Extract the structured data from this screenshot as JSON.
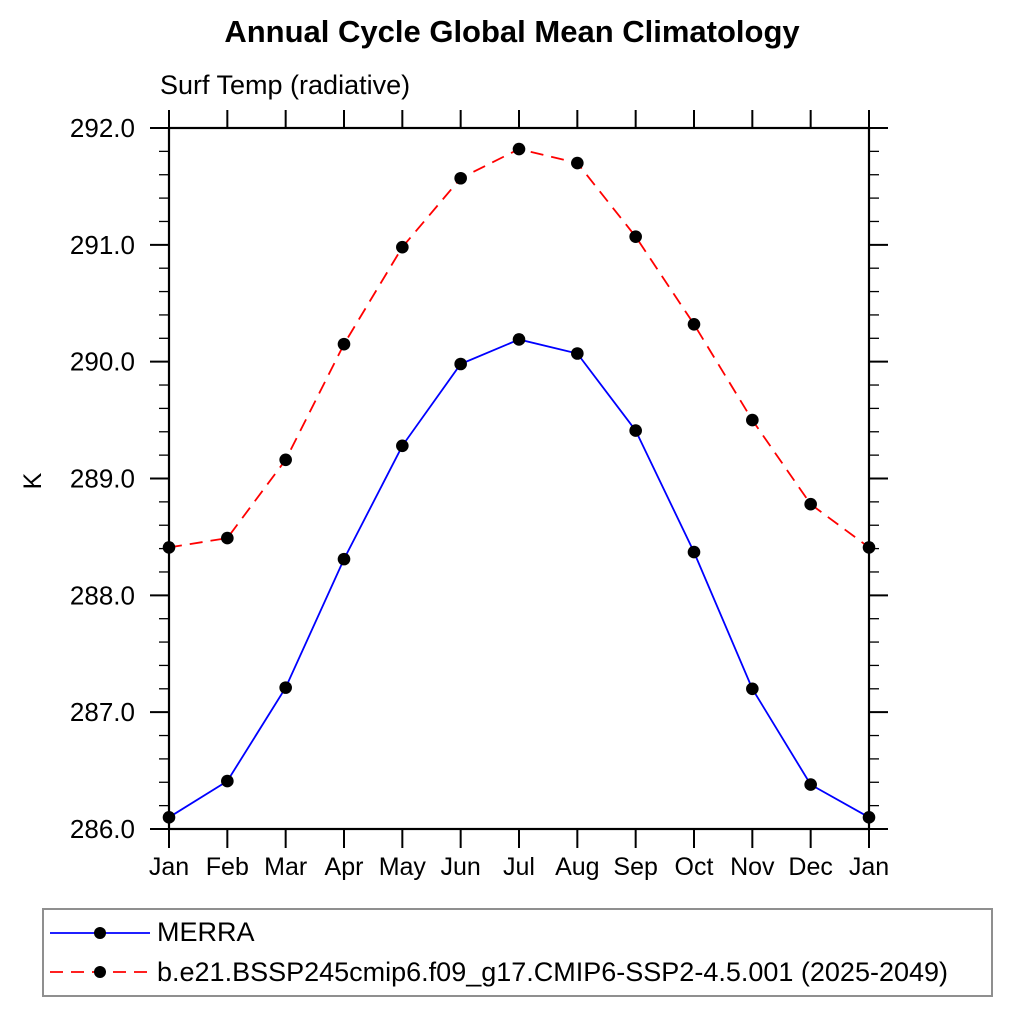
{
  "chart_data": {
    "type": "line",
    "title": "Annual Cycle Global Mean Climatology",
    "subtitle": "Surf Temp (radiative)",
    "ylabel": "K",
    "xlabel": "",
    "x": [
      "Jan",
      "Feb",
      "Mar",
      "Apr",
      "May",
      "Jun",
      "Jul",
      "Aug",
      "Sep",
      "Oct",
      "Nov",
      "Dec",
      "Jan"
    ],
    "ylim": [
      286.0,
      292.0
    ],
    "ytick_major": 1.0,
    "ytick_minor": 0.2,
    "ytick_label_format": "one-decimal",
    "grid": false,
    "legend_position": "bottom-outside",
    "series": [
      {
        "name": "MERRA",
        "color": "#0000ff",
        "style": "solid",
        "marker": "filled-circle",
        "marker_color": "#000000",
        "values": [
          286.1,
          286.41,
          287.21,
          288.31,
          289.28,
          289.98,
          290.19,
          290.07,
          289.41,
          288.37,
          287.2,
          286.38,
          286.1
        ]
      },
      {
        "name": "b.e21.BSSP245cmip6.f09_g17.CMIP6-SSP2-4.5.001 (2025-2049)",
        "color": "#ff0000",
        "style": "dashed",
        "marker": "filled-circle",
        "marker_color": "#000000",
        "values": [
          288.41,
          288.49,
          289.16,
          290.15,
          290.98,
          291.57,
          291.82,
          291.7,
          291.07,
          290.32,
          289.5,
          288.78,
          288.41
        ]
      }
    ]
  }
}
